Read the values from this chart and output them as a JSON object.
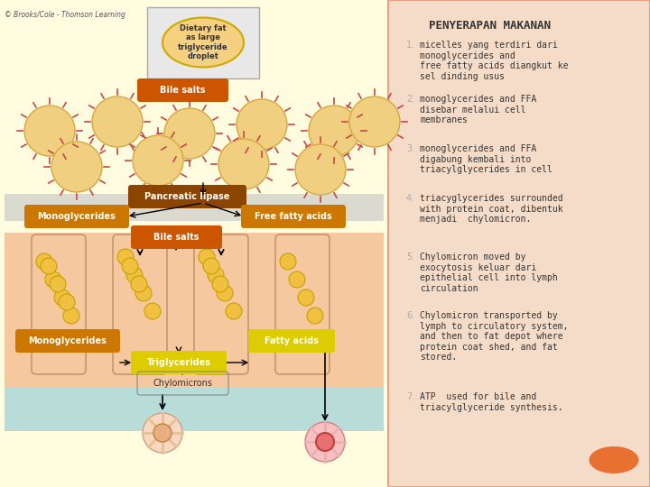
{
  "title": "PENYERAPAN MAKANAN",
  "bg_color": "#fffef0",
  "left_panel_bg": "#fffce0",
  "intestine_bg": "#f5c8a0",
  "lymph_bg": "#b8ddd8",
  "right_panel_bg": "#f5dcc8",
  "border_color": "#e8a080",
  "text_color": "#333333",
  "watermark": "© Brooks/Cole - Thomson Learning",
  "steps": [
    "micelles yang terdiri dari\nmonoglycerides and\nfree fatty acids diangkut ke\nsel dinding usus",
    "monoglycerides and FFA\ndisebar melalui cell\nmembranes",
    "monoglycerides and FFA\ndigabung kembali into\ntriacylglycerides in cell",
    "triacyglycerides surrounded\nwith protein coat, dibentuk\nmenjadi  chylomicron.",
    "Chylomicron moved by\nexocytosis keluar dari\nepithelial cell into lymph\ncirculation",
    "Chylomicron transported by\nlymph to circulatory system,\nand then to fat depot where\nprotein coat shed, and fat\nstored.",
    "ATP  used for bile and\ntriacylglyceride synthesis."
  ],
  "diagram": {
    "dietary_fat_label": "Dietary fat\nas large\ntriglyceride\ndroplet",
    "bile_salts_1": "Bile salts",
    "pancreatic_lipase": "Pancreatic lipase",
    "monoglycerides_1": "Monoglycerides",
    "free_fatty_acids": "Free fatty acids",
    "bile_salts_2": "Bile salts",
    "monoglycerides_2": "Monoglycerides",
    "fatty_acids": "Fatty acids",
    "triglycerides": "Triglycerides",
    "chylomicrons": "Chylomicrons",
    "droplet_color": "#f5d080",
    "bile_salts_color": "#cc5500",
    "pancreatic_color": "#8b4500",
    "mono_color": "#cc7700",
    "ffa_color": "#cc7700",
    "yellow_label_color": "#ddcc00",
    "small_circle_color": "#f0c040",
    "large_circle_color": "#f0d080",
    "orange_ellipse_color": "#e87030"
  }
}
